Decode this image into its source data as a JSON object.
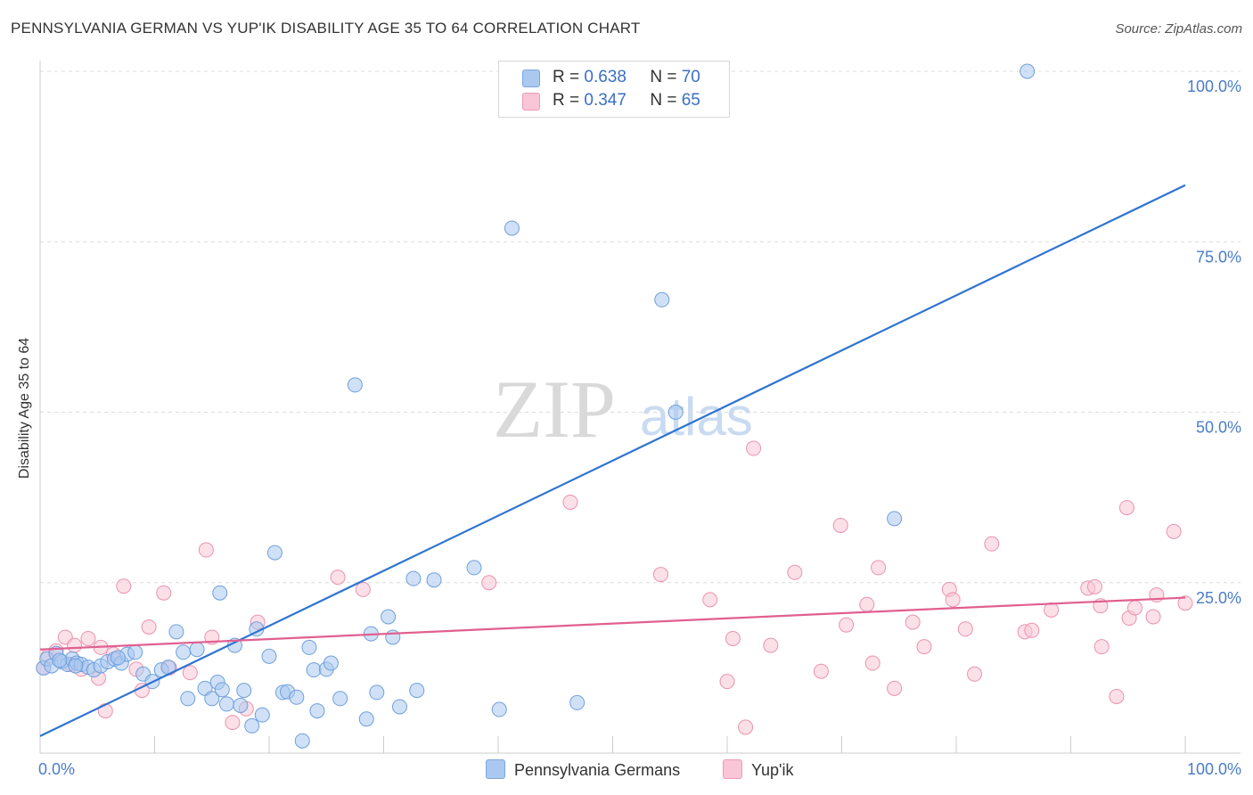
{
  "title": "PENNSYLVANIA GERMAN VS YUP'IK DISABILITY AGE 35 TO 64 CORRELATION CHART",
  "source": "Source: ZipAtlas.com",
  "watermark": {
    "zip": "ZIP",
    "atlas": "atlas"
  },
  "legend": [
    {
      "r_label": "R =",
      "r_value": "0.638",
      "n_label": "N =",
      "n_value": "70",
      "color": "#aac8f0",
      "border": "#7aa6e0"
    },
    {
      "r_label": "R =",
      "r_value": "0.347",
      "n_label": "N =",
      "n_value": "65",
      "color": "#f8c6d6",
      "border": "#ee9ab5"
    }
  ],
  "chart_data": {
    "type": "scatter",
    "title": "PENNSYLVANIA GERMAN VS YUP'IK DISABILITY AGE 35 TO 64 CORRELATION CHART",
    "xlabel": "",
    "ylabel": "Disability Age 35 to 64",
    "xlim": [
      0,
      100
    ],
    "ylim": [
      0,
      100
    ],
    "x_tick_labels": [
      "0.0%",
      "100.0%"
    ],
    "y_ticks": [
      25,
      50,
      75,
      100
    ],
    "y_tick_labels": [
      "25.0%",
      "50.0%",
      "75.0%",
      "100.0%"
    ],
    "grid": "horizontal dashed",
    "legend_position": "top-center",
    "series": [
      {
        "name": "Pennsylvania Germans",
        "color": "#aac8f0",
        "edge": "#6f9fdc",
        "line_color": "#2f74d0",
        "trend": {
          "x": [
            0,
            100
          ],
          "y": [
            2.5,
            83.3
          ]
        },
        "points": [
          [
            0.3,
            12.5
          ],
          [
            0.6,
            13.8
          ],
          [
            1.0,
            12.8
          ],
          [
            1.4,
            14.6
          ],
          [
            1.9,
            13.4
          ],
          [
            2.4,
            13.0
          ],
          [
            2.8,
            13.8
          ],
          [
            3.2,
            13.2
          ],
          [
            3.6,
            13.0
          ],
          [
            4.2,
            12.6
          ],
          [
            4.7,
            12.2
          ],
          [
            5.3,
            12.8
          ],
          [
            5.9,
            13.4
          ],
          [
            6.5,
            13.8
          ],
          [
            7.1,
            13.2
          ],
          [
            7.6,
            14.5
          ],
          [
            8.3,
            14.8
          ],
          [
            9.0,
            11.6
          ],
          [
            9.8,
            10.5
          ],
          [
            10.6,
            12.2
          ],
          [
            11.2,
            12.6
          ],
          [
            11.9,
            17.8
          ],
          [
            12.5,
            14.8
          ],
          [
            12.9,
            8.0
          ],
          [
            13.7,
            15.2
          ],
          [
            14.4,
            9.5
          ],
          [
            15.0,
            8.0
          ],
          [
            15.5,
            10.4
          ],
          [
            15.9,
            9.3
          ],
          [
            15.7,
            23.5
          ],
          [
            16.3,
            7.2
          ],
          [
            17.0,
            15.8
          ],
          [
            17.5,
            7.0
          ],
          [
            17.8,
            9.2
          ],
          [
            18.5,
            4.0
          ],
          [
            18.9,
            18.2
          ],
          [
            19.4,
            5.6
          ],
          [
            20.0,
            14.2
          ],
          [
            20.5,
            29.4
          ],
          [
            21.2,
            8.9
          ],
          [
            21.6,
            9.0
          ],
          [
            22.4,
            8.2
          ],
          [
            22.9,
            1.8
          ],
          [
            23.5,
            15.5
          ],
          [
            23.9,
            12.2
          ],
          [
            24.2,
            6.2
          ],
          [
            25.0,
            12.3
          ],
          [
            25.4,
            13.2
          ],
          [
            26.2,
            8.0
          ],
          [
            27.5,
            54.0
          ],
          [
            28.5,
            5.0
          ],
          [
            28.9,
            17.5
          ],
          [
            29.4,
            8.9
          ],
          [
            30.4,
            20.0
          ],
          [
            30.8,
            17.0
          ],
          [
            31.4,
            6.8
          ],
          [
            32.6,
            25.6
          ],
          [
            32.9,
            9.2
          ],
          [
            34.4,
            25.4
          ],
          [
            37.9,
            27.2
          ],
          [
            40.1,
            6.4
          ],
          [
            41.2,
            77.0
          ],
          [
            46.9,
            7.4
          ],
          [
            54.3,
            66.5
          ],
          [
            55.5,
            50.0
          ],
          [
            74.6,
            34.4
          ],
          [
            86.2,
            100.0
          ],
          [
            3.1,
            12.8
          ],
          [
            6.8,
            14.0
          ],
          [
            1.7,
            13.6
          ]
        ]
      },
      {
        "name": "Yup'ik",
        "color": "#f8c6d6",
        "edge": "#eb92b0",
        "line_color": "#e06090",
        "trend": {
          "x": [
            0,
            100
          ],
          "y": [
            15.2,
            22.8
          ]
        },
        "points": [
          [
            0.3,
            12.5
          ],
          [
            0.7,
            14.2
          ],
          [
            1.4,
            15.0
          ],
          [
            2.2,
            17.0
          ],
          [
            3.0,
            15.8
          ],
          [
            3.6,
            12.3
          ],
          [
            4.2,
            16.8
          ],
          [
            5.1,
            11.0
          ],
          [
            5.3,
            15.5
          ],
          [
            5.7,
            6.2
          ],
          [
            6.4,
            14.5
          ],
          [
            7.3,
            24.5
          ],
          [
            8.4,
            12.3
          ],
          [
            8.9,
            9.2
          ],
          [
            9.5,
            18.5
          ],
          [
            10.8,
            23.5
          ],
          [
            11.3,
            12.5
          ],
          [
            13.1,
            11.8
          ],
          [
            14.5,
            29.8
          ],
          [
            15.0,
            17.0
          ],
          [
            16.8,
            4.5
          ],
          [
            18.0,
            6.5
          ],
          [
            19.0,
            19.2
          ],
          [
            26.0,
            25.8
          ],
          [
            28.2,
            24.0
          ],
          [
            39.2,
            25.0
          ],
          [
            46.3,
            36.8
          ],
          [
            54.2,
            26.2
          ],
          [
            58.5,
            22.5
          ],
          [
            60.0,
            10.5
          ],
          [
            60.5,
            16.8
          ],
          [
            61.6,
            3.8
          ],
          [
            62.3,
            44.7
          ],
          [
            63.8,
            15.8
          ],
          [
            65.9,
            26.5
          ],
          [
            68.2,
            12.0
          ],
          [
            69.9,
            33.4
          ],
          [
            70.4,
            18.8
          ],
          [
            72.2,
            21.8
          ],
          [
            72.7,
            13.2
          ],
          [
            73.2,
            27.2
          ],
          [
            74.6,
            9.5
          ],
          [
            76.2,
            19.2
          ],
          [
            77.2,
            15.6
          ],
          [
            79.4,
            24.0
          ],
          [
            79.7,
            22.5
          ],
          [
            80.8,
            18.2
          ],
          [
            81.6,
            11.6
          ],
          [
            83.1,
            30.7
          ],
          [
            86.0,
            17.8
          ],
          [
            86.6,
            18.0
          ],
          [
            88.3,
            21.0
          ],
          [
            91.5,
            24.2
          ],
          [
            92.1,
            24.4
          ],
          [
            92.6,
            21.6
          ],
          [
            92.7,
            15.6
          ],
          [
            94.0,
            8.3
          ],
          [
            94.9,
            36.0
          ],
          [
            95.1,
            19.8
          ],
          [
            95.6,
            21.3
          ],
          [
            97.2,
            20.0
          ],
          [
            97.5,
            23.2
          ],
          [
            99.0,
            32.5
          ],
          [
            100.0,
            22.0
          ],
          [
            2.7,
            13.0
          ]
        ]
      }
    ]
  }
}
